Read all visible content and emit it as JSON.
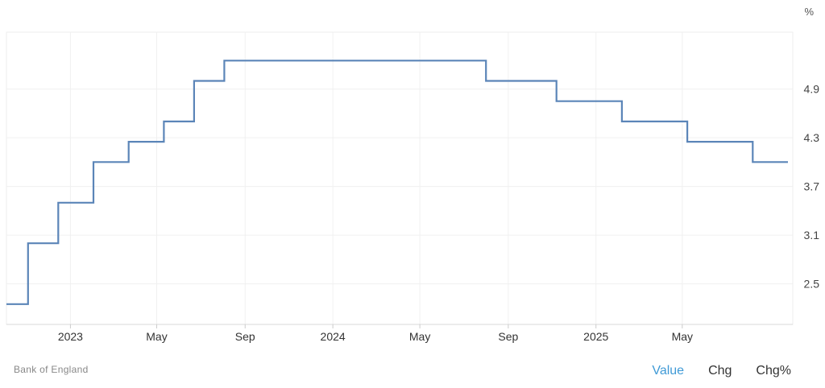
{
  "chart_data": {
    "type": "line",
    "step": true,
    "unit_label": "%",
    "source": "Bank of England",
    "x_ticks": [
      "2023",
      "May",
      "Sep",
      "2024",
      "May",
      "Sep",
      "2025",
      "May"
    ],
    "x_tick_dates": [
      "2023-01-01",
      "2023-05-01",
      "2023-09-01",
      "2024-01-01",
      "2024-05-01",
      "2024-09-01",
      "2025-01-01",
      "2025-05-01"
    ],
    "y_ticks": [
      "2.5",
      "3.1",
      "3.7",
      "4.3",
      "4.9"
    ],
    "y_tick_values": [
      2.5,
      3.1,
      3.7,
      4.3,
      4.9
    ],
    "ylim": [
      2.0,
      5.6
    ],
    "xlim": [
      "2022-10-04",
      "2025-09-25"
    ],
    "grid": true,
    "line_color": "#5b85b8",
    "series": [
      {
        "x": [
          "2022-10-04",
          "2022-11-03",
          "2022-12-15",
          "2023-02-02",
          "2023-03-23",
          "2023-05-11",
          "2023-06-22",
          "2023-08-03",
          "2024-08-01",
          "2024-11-07",
          "2025-02-06",
          "2025-05-08",
          "2025-08-07",
          "2025-09-25"
        ],
        "y": [
          2.25,
          3.0,
          3.5,
          4.0,
          4.25,
          4.5,
          5.0,
          5.25,
          5.0,
          4.75,
          4.5,
          4.25,
          4.0,
          4.0
        ]
      }
    ]
  },
  "tabs": [
    {
      "label": "Value",
      "active": true
    },
    {
      "label": "Chg",
      "active": false
    },
    {
      "label": "Chg%",
      "active": false
    }
  ]
}
